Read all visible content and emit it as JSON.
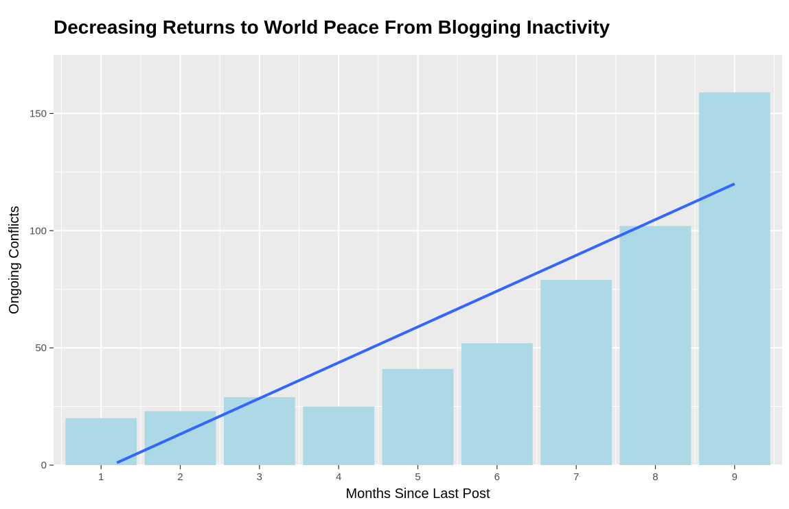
{
  "chart_data": {
    "type": "bar",
    "title": "Decreasing Returns to World Peace From Blogging Inactivity",
    "xlabel": "Months Since Last Post",
    "ylabel": "Ongoing Conflicts",
    "categories": [
      "1",
      "2",
      "3",
      "4",
      "5",
      "6",
      "7",
      "8",
      "9"
    ],
    "values": [
      20,
      23,
      29,
      25,
      41,
      52,
      79,
      102,
      159
    ],
    "ylim": [
      0,
      175
    ],
    "yticks": [
      0,
      50,
      100,
      150
    ],
    "trend_line": {
      "type": "linear_fit",
      "start": [
        1.2,
        1
      ],
      "end": [
        9,
        120
      ]
    },
    "grid": true,
    "colors": {
      "bar": "#add8e6",
      "trend": "#3366ff",
      "panel": "#ebebeb",
      "grid": "#ffffff"
    }
  }
}
